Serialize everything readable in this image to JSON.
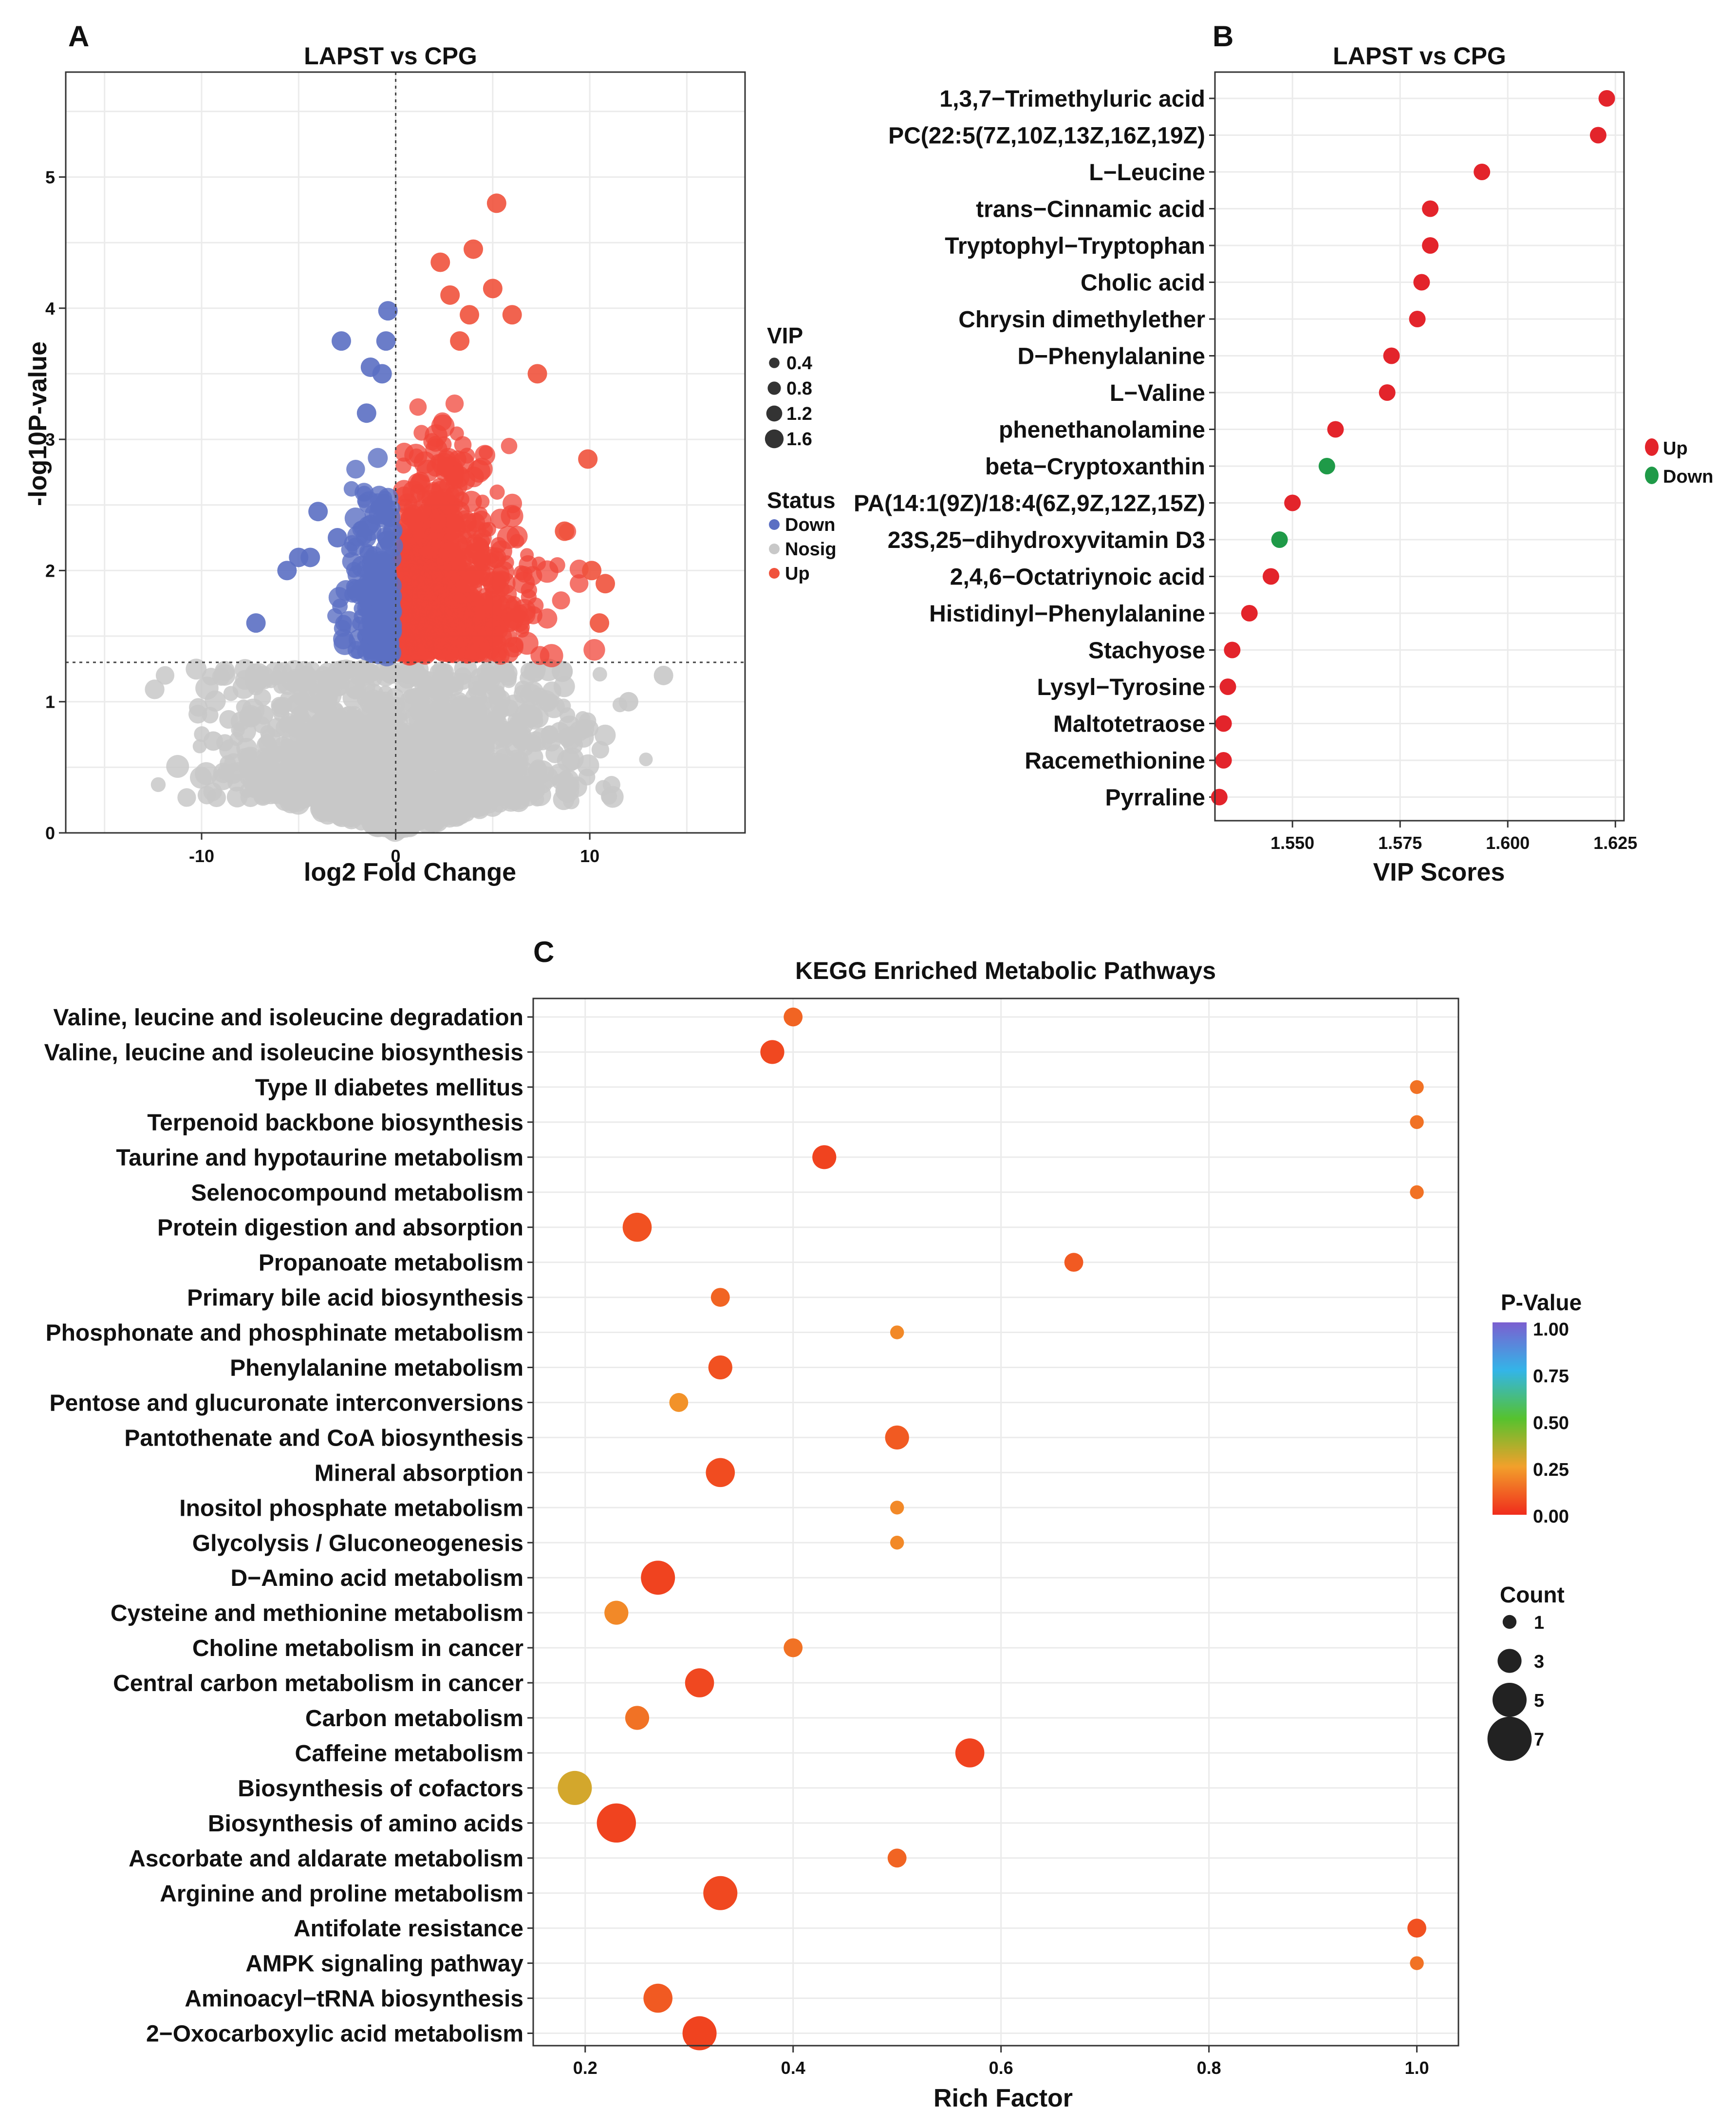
{
  "chart_data": [
    {
      "panel": "A",
      "type": "scatter",
      "subtype": "volcano",
      "title": "LAPST vs CPG",
      "xlabel": "log2 Fold Change",
      "ylabel": "-log10P-value",
      "xlim": [
        -17,
        18
      ],
      "ylim": [
        0,
        5.8
      ],
      "xticks": [
        -10,
        0,
        10
      ],
      "yticks": [
        0,
        1,
        2,
        3,
        4,
        5
      ],
      "threshold_x": 0,
      "threshold_y": 1.3,
      "legend_vip": {
        "title": "VIP",
        "values": [
          0.4,
          0.8,
          1.2,
          1.6
        ]
      },
      "legend_status": {
        "title": "Status",
        "items": [
          {
            "label": "Down",
            "color": "#5b6fc3"
          },
          {
            "label": "Nosig",
            "color": "#c8c8c8"
          },
          {
            "label": "Up",
            "color": "#f0523c"
          }
        ]
      },
      "highlight_points": [
        {
          "x": 5.2,
          "y": 4.8,
          "s": "Up"
        },
        {
          "x": 2.3,
          "y": 4.35,
          "s": "Up"
        },
        {
          "x": 4.0,
          "y": 4.45,
          "s": "Up"
        },
        {
          "x": 5.0,
          "y": 4.15,
          "s": "Up"
        },
        {
          "x": 2.8,
          "y": 4.1,
          "s": "Up"
        },
        {
          "x": 3.8,
          "y": 3.95,
          "s": "Up"
        },
        {
          "x": 6.0,
          "y": 3.95,
          "s": "Up"
        },
        {
          "x": 3.3,
          "y": 3.75,
          "s": "Up"
        },
        {
          "x": 7.3,
          "y": 3.5,
          "s": "Up"
        },
        {
          "x": 9.9,
          "y": 2.85,
          "s": "Up"
        },
        {
          "x": 10.1,
          "y": 2.0,
          "s": "Up"
        },
        {
          "x": 10.8,
          "y": 1.9,
          "s": "Up"
        },
        {
          "x": 10.5,
          "y": 1.6,
          "s": "Up"
        },
        {
          "x": 8.7,
          "y": 2.3,
          "s": "Up"
        },
        {
          "x": -0.4,
          "y": 3.98,
          "s": "Down"
        },
        {
          "x": -2.8,
          "y": 3.75,
          "s": "Down"
        },
        {
          "x": -0.5,
          "y": 3.75,
          "s": "Down"
        },
        {
          "x": -1.3,
          "y": 3.55,
          "s": "Down"
        },
        {
          "x": -0.7,
          "y": 3.5,
          "s": "Down"
        },
        {
          "x": -1.5,
          "y": 3.2,
          "s": "Down"
        },
        {
          "x": -4.0,
          "y": 2.45,
          "s": "Down"
        },
        {
          "x": -3.0,
          "y": 2.25,
          "s": "Down"
        },
        {
          "x": -5.0,
          "y": 2.1,
          "s": "Down"
        },
        {
          "x": -4.4,
          "y": 2.1,
          "s": "Down"
        },
        {
          "x": -5.6,
          "y": 2.0,
          "s": "Down"
        },
        {
          "x": -7.2,
          "y": 1.6,
          "s": "Down"
        },
        {
          "x": 13.8,
          "y": 1.2,
          "s": "Nosig"
        },
        {
          "x": 12.0,
          "y": 1.0,
          "s": "Nosig"
        },
        {
          "x": -9.4,
          "y": 0.7,
          "s": "Nosig"
        },
        {
          "x": -6.3,
          "y": 0.6,
          "s": "Nosig"
        },
        {
          "x": -6.8,
          "y": 0.9,
          "s": "Nosig"
        },
        {
          "x": -8.0,
          "y": 0.85,
          "s": "Nosig"
        }
      ]
    },
    {
      "panel": "B",
      "type": "scatter",
      "subtype": "dotplot",
      "title": "LAPST vs CPG",
      "xlabel": "VIP Scores",
      "xlim": [
        1.532,
        1.627
      ],
      "xticks": [
        "1.550",
        "1.575",
        "1.600",
        "1.625"
      ],
      "xtick_values": [
        1.55,
        1.575,
        1.6,
        1.625
      ],
      "legend": [
        {
          "label": "Up",
          "color": "#e3242b"
        },
        {
          "label": "Down",
          "color": "#1f9a48"
        }
      ],
      "categories": [
        "1,3,7−Trimethyluric acid",
        "PC(22:5(7Z,10Z,13Z,16Z,19Z)",
        "L−Leucine",
        "trans−Cinnamic acid",
        "Tryptophyl−Tryptophan",
        "Cholic acid",
        "Chrysin dimethylether",
        "D−Phenylalanine",
        "L−Valine",
        "phenethanolamine",
        "beta−Cryptoxanthin",
        "PA(14:1(9Z)/18:4(6Z,9Z,12Z,15Z)",
        "23S,25−dihydroxyvitamin D3",
        "2,4,6−Octatriynoic acid",
        "Histidinyl−Phenylalanine",
        "Stachyose",
        "Lysyl−Tyrosine",
        "Maltotetraose",
        "Racemethionine",
        "Pyrraline"
      ],
      "values": [
        1.623,
        1.621,
        1.594,
        1.582,
        1.582,
        1.58,
        1.579,
        1.573,
        1.572,
        1.56,
        1.558,
        1.55,
        1.547,
        1.545,
        1.54,
        1.536,
        1.535,
        1.534,
        1.534,
        1.533
      ],
      "status": [
        "Up",
        "Up",
        "Up",
        "Up",
        "Up",
        "Up",
        "Up",
        "Up",
        "Up",
        "Up",
        "Down",
        "Up",
        "Down",
        "Up",
        "Up",
        "Up",
        "Up",
        "Up",
        "Up",
        "Up"
      ]
    },
    {
      "panel": "C",
      "type": "scatter",
      "subtype": "bubble",
      "title": "KEGG Enriched Metabolic Pathways",
      "xlabel": "Rich Factor",
      "xlim": [
        0.15,
        1.04
      ],
      "xticks": [
        "0.2",
        "0.4",
        "0.6",
        "0.8",
        "1.0"
      ],
      "xtick_values": [
        0.2,
        0.4,
        0.6,
        0.8,
        1.0
      ],
      "legend_pvalue": {
        "title": "P-Value",
        "ticks": [
          "1.00",
          "0.75",
          "0.50",
          "0.25",
          "0.00"
        ]
      },
      "legend_count": {
        "title": "Count",
        "values": [
          1,
          3,
          5,
          7
        ]
      },
      "categories": [
        "Valine, leucine and isoleucine degradation",
        "Valine, leucine and isoleucine biosynthesis",
        "Type II diabetes mellitus",
        "Terpenoid backbone biosynthesis",
        "Taurine and hypotaurine metabolism",
        "Selenocompound metabolism",
        "Protein digestion and absorption",
        "Propanoate metabolism",
        "Primary bile acid biosynthesis",
        "Phosphonate and phosphinate metabolism",
        "Phenylalanine metabolism",
        "Pentose and glucuronate interconversions",
        "Pantothenate and CoA biosynthesis",
        "Mineral absorption",
        "Inositol phosphate metabolism",
        "Glycolysis / Gluconeogenesis",
        "D−Amino acid metabolism",
        "Cysteine and methionine metabolism",
        "Choline metabolism in cancer",
        "Central carbon metabolism in cancer",
        "Carbon metabolism",
        "Caffeine metabolism",
        "Biosynthesis of cofactors",
        "Biosynthesis of amino acids",
        "Ascorbate and aldarate metabolism",
        "Arginine and proline metabolism",
        "Antifolate resistance",
        "AMPK signaling pathway",
        "Aminoacyl−tRNA biosynthesis",
        "2−Oxocarboxylic acid metabolism"
      ],
      "rich_factor": [
        0.4,
        0.38,
        1.0,
        1.0,
        0.43,
        1.0,
        0.25,
        0.67,
        0.33,
        0.5,
        0.33,
        0.29,
        0.5,
        0.33,
        0.5,
        0.5,
        0.27,
        0.23,
        0.4,
        0.31,
        0.25,
        0.57,
        0.19,
        0.23,
        0.5,
        0.33,
        1.0,
        1.0,
        0.27,
        0.31
      ],
      "count": [
        2,
        3,
        1,
        1,
        3,
        1,
        4,
        2,
        2,
        1,
        3,
        2,
        3,
        4,
        1,
        1,
        5,
        3,
        2,
        4,
        3,
        4,
        5,
        6,
        2,
        5,
        2,
        1,
        4,
        5
      ],
      "p_value": [
        0.12,
        0.06,
        0.15,
        0.15,
        0.05,
        0.15,
        0.08,
        0.1,
        0.12,
        0.2,
        0.08,
        0.22,
        0.1,
        0.07,
        0.2,
        0.2,
        0.05,
        0.2,
        0.15,
        0.06,
        0.15,
        0.05,
        0.3,
        0.05,
        0.12,
        0.06,
        0.08,
        0.15,
        0.1,
        0.05
      ]
    }
  ],
  "panels": {
    "a": "A",
    "b": "B",
    "c": "C"
  }
}
